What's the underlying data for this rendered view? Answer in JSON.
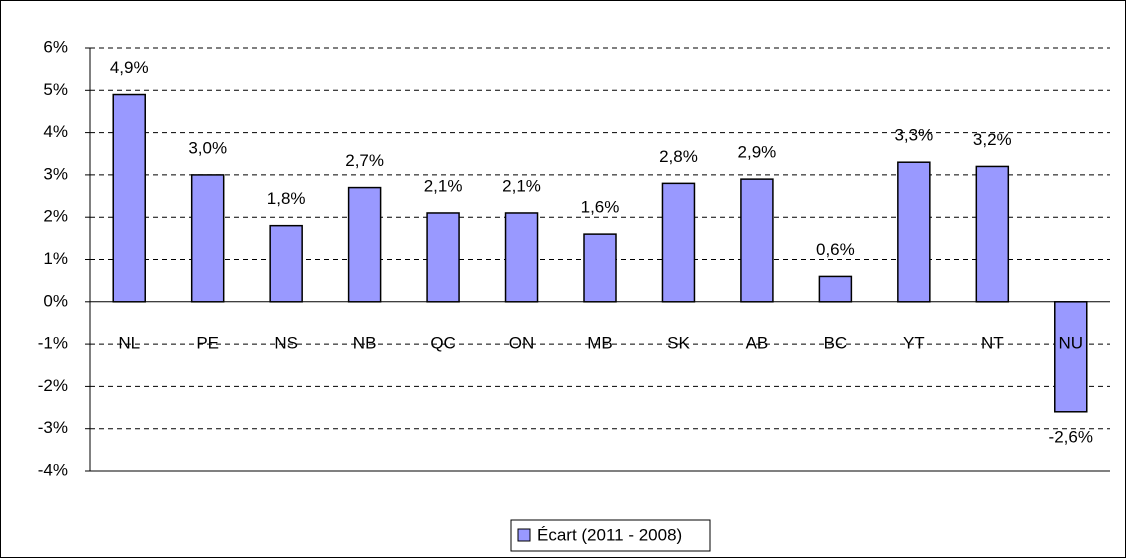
{
  "chart_data": {
    "type": "bar",
    "categories": [
      "NL",
      "PE",
      "NS",
      "NB",
      "QC",
      "ON",
      "MB",
      "SK",
      "AB",
      "BC",
      "YT",
      "NT",
      "NU"
    ],
    "series": [
      {
        "name": "Écart (2011 - 2008)",
        "color": "#9999ff",
        "values": [
          4.9,
          3.0,
          1.8,
          2.7,
          2.1,
          2.1,
          1.6,
          2.8,
          2.9,
          0.6,
          3.3,
          3.2,
          -2.6
        ],
        "value_labels": [
          "4,9%",
          "3,0%",
          "1,8%",
          "2,7%",
          "2,1%",
          "2,1%",
          "1,6%",
          "2,8%",
          "2,9%",
          "0,6%",
          "3,3%",
          "3,2%",
          "-2,6%"
        ]
      }
    ],
    "ylim": [
      -4,
      6
    ],
    "yticks": [
      {
        "value": -4,
        "label": "-4%"
      },
      {
        "value": -3,
        "label": "-3%"
      },
      {
        "value": -2,
        "label": "-2%"
      },
      {
        "value": -1,
        "label": "-1%"
      },
      {
        "value": 0,
        "label": "0%"
      },
      {
        "value": 1,
        "label": "1%"
      },
      {
        "value": 2,
        "label": "2%"
      },
      {
        "value": 3,
        "label": "3%"
      },
      {
        "value": 4,
        "label": "4%"
      },
      {
        "value": 5,
        "label": "5%"
      },
      {
        "value": 6,
        "label": "6%"
      }
    ],
    "grid": true,
    "legend": "bottom"
  }
}
